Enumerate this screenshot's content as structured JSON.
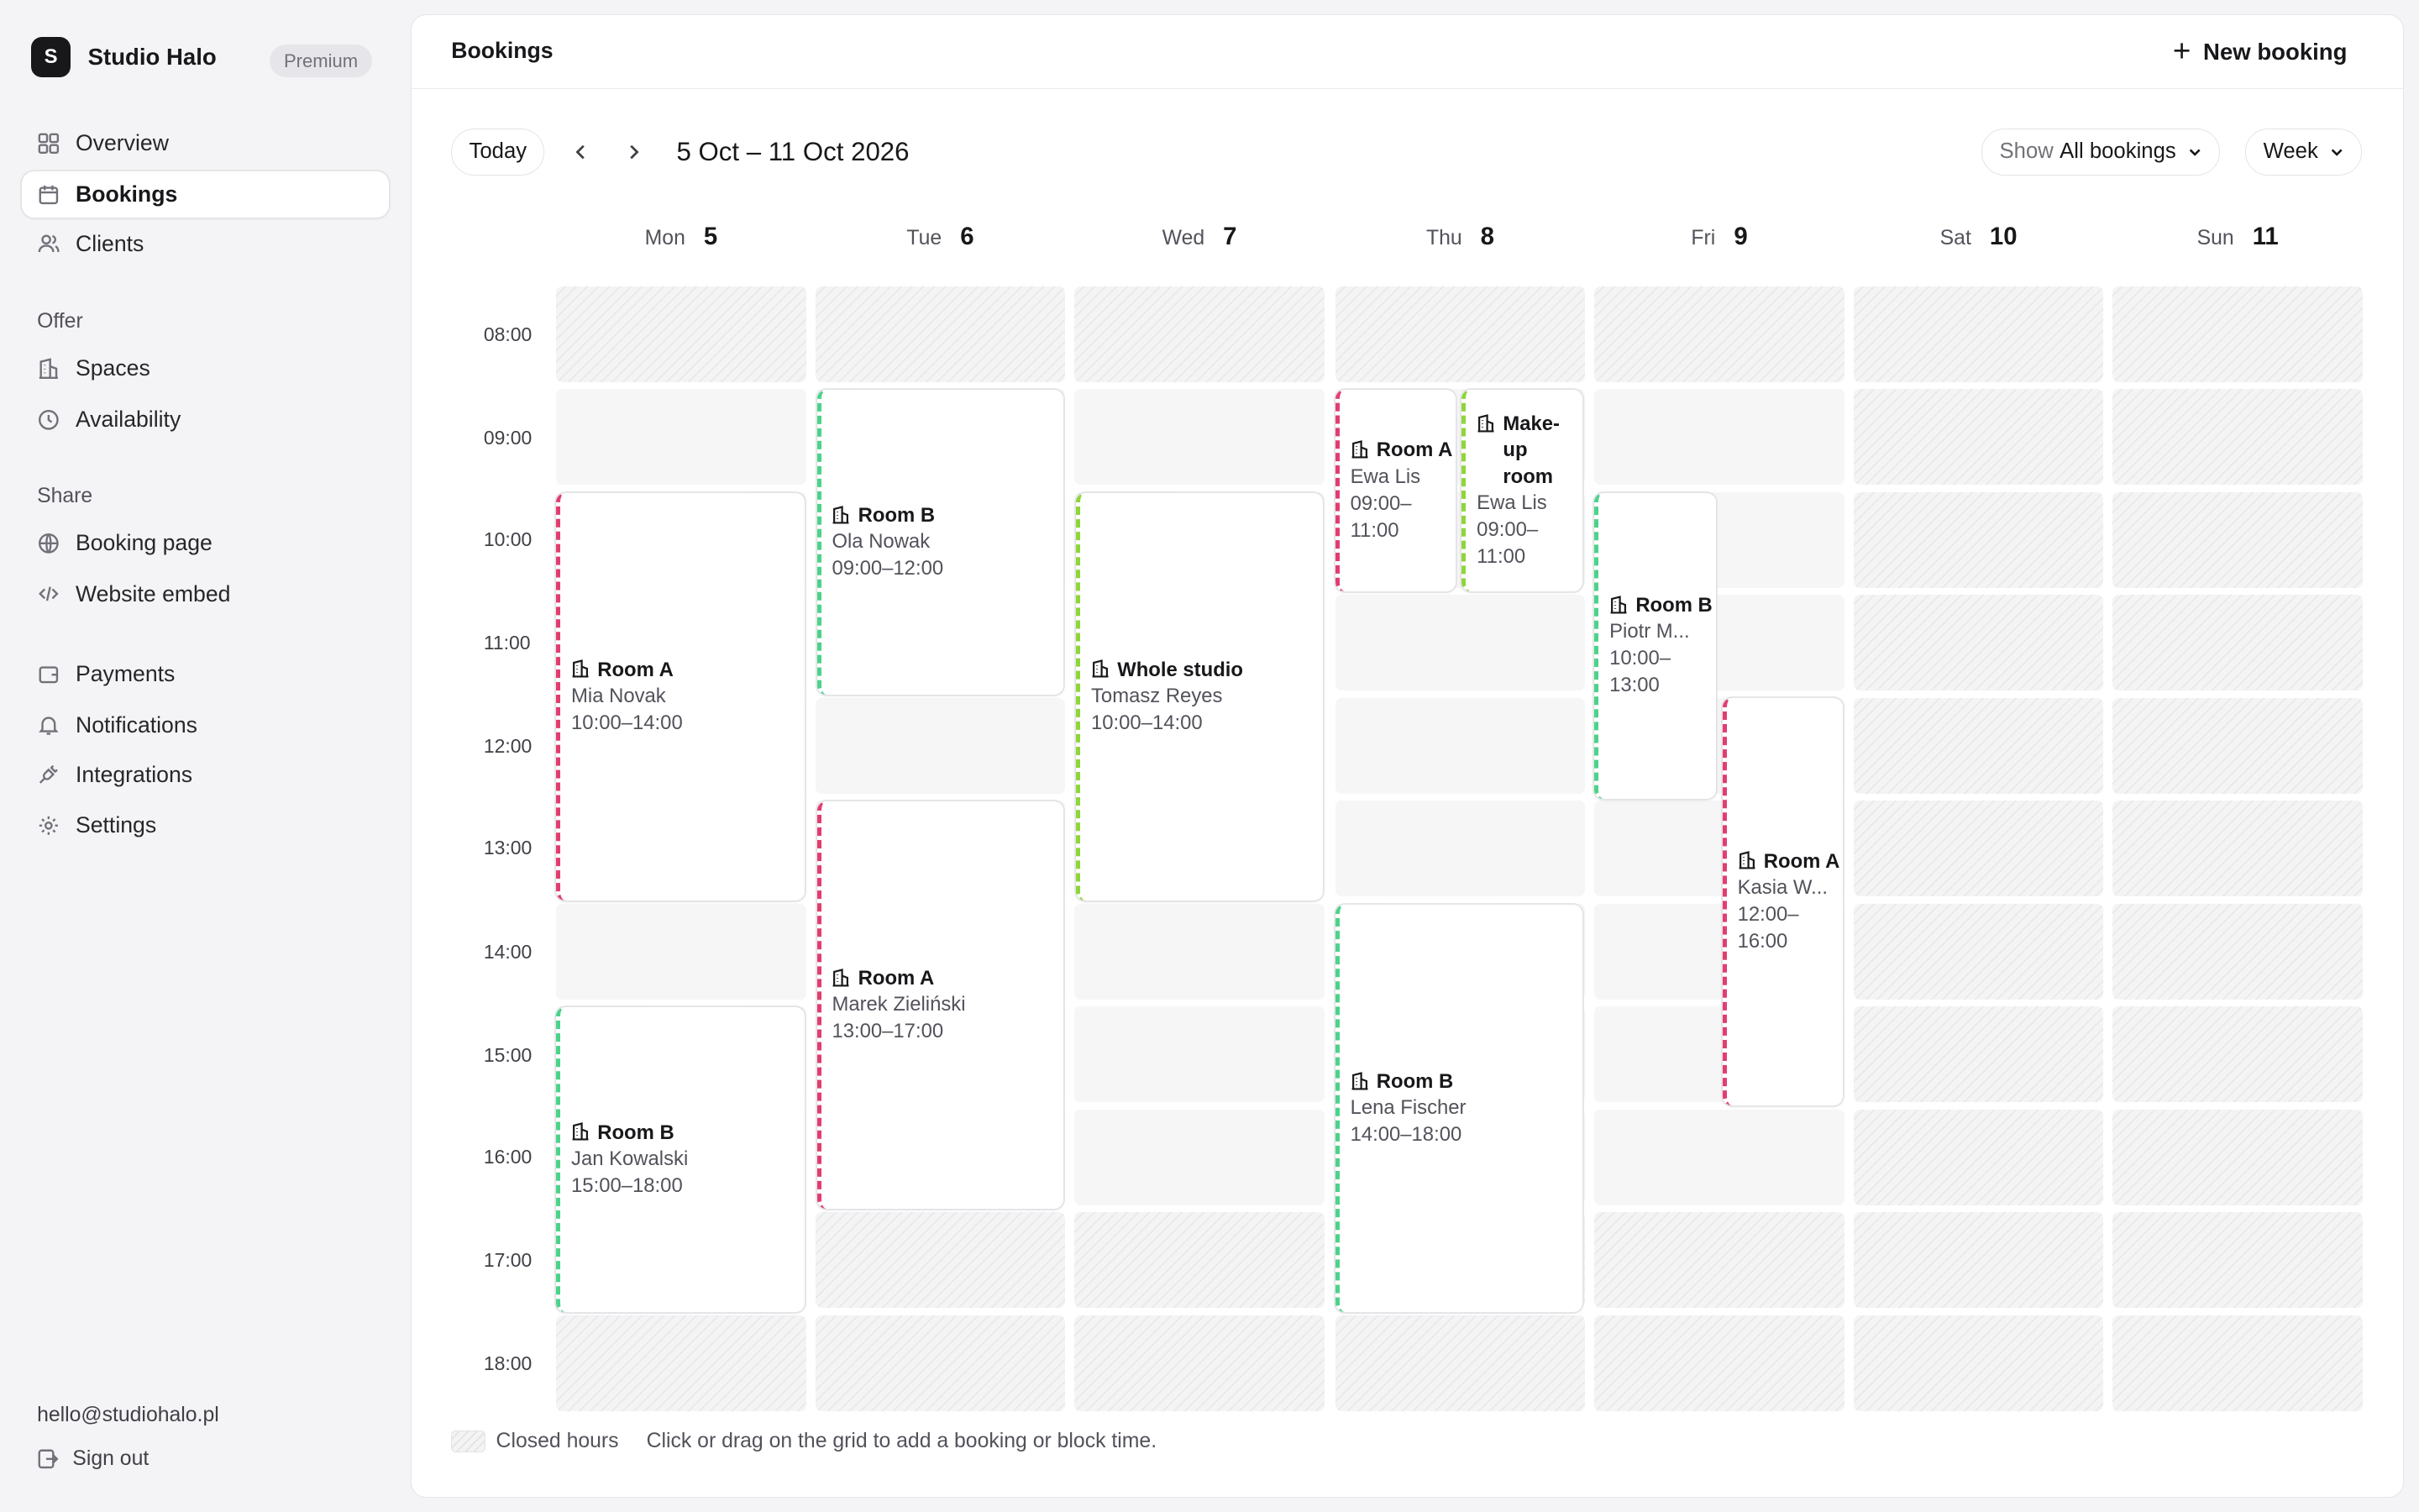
{
  "brand": {
    "logo_letter": "S",
    "name": "Studio Halo",
    "plan": "Premium"
  },
  "nav": {
    "overview": "Overview",
    "bookings": "Bookings",
    "clients": "Clients",
    "offer_label": "Offer",
    "spaces": "Spaces",
    "availability": "Availability",
    "share_label": "Share",
    "booking_page": "Booking page",
    "website_embed": "Website embed",
    "payments": "Payments",
    "notifications": "Notifications",
    "integrations": "Integrations",
    "settings": "Settings"
  },
  "account": {
    "email": "hello@studiohalo.pl",
    "sign_out": "Sign out"
  },
  "header": {
    "title": "Bookings",
    "new_booking": "New booking"
  },
  "toolbar": {
    "today": "Today",
    "range": "5 Oct – 11 Oct 2026",
    "show_label": "Show",
    "show_value": "All bookings",
    "view": "Week"
  },
  "days": [
    {
      "name": "Mon",
      "date": "5"
    },
    {
      "name": "Tue",
      "date": "6"
    },
    {
      "name": "Wed",
      "date": "7"
    },
    {
      "name": "Thu",
      "date": "8"
    },
    {
      "name": "Fri",
      "date": "9"
    },
    {
      "name": "Sat",
      "date": "10"
    },
    {
      "name": "Sun",
      "date": "11"
    }
  ],
  "hours": [
    "08:00",
    "09:00",
    "10:00",
    "11:00",
    "12:00",
    "13:00",
    "14:00",
    "15:00",
    "16:00",
    "17:00",
    "18:00"
  ],
  "bookings": {
    "mon_a": {
      "space": "Room A",
      "client": "Mia Novak",
      "time": "10:00–14:00"
    },
    "mon_b": {
      "space": "Room B",
      "client": "Jan Kowalski",
      "time": "15:00–18:00"
    },
    "tue_b": {
      "space": "Room B",
      "client": "Ola Nowak",
      "time": "09:00–12:00"
    },
    "tue_a": {
      "space": "Room A",
      "client": "Marek Zieliński",
      "time": "13:00–17:00"
    },
    "wed_studio": {
      "space": "Whole studio",
      "client": "Tomasz Reyes",
      "time": "10:00–14:00"
    },
    "thu_a": {
      "space": "Room A",
      "client": "Ewa Lis",
      "time": "09:00–11:00"
    },
    "thu_makeup": {
      "space": "Make-up room",
      "client": "Ewa Lis",
      "time": "09:00–11:00"
    },
    "thu_b": {
      "space": "Room B",
      "client": "Lena Fischer",
      "time": "14:00–18:00"
    },
    "fri_b": {
      "space": "Room B",
      "client": "Piotr M...",
      "time": "10:00–13:00"
    },
    "fri_a": {
      "space": "Room A",
      "client": "Kasia W...",
      "time": "12:00–16:00"
    }
  },
  "colors": {
    "room_a": "#e23d6f",
    "room_b": "#4cd38a",
    "whole_studio": "#8ed639"
  },
  "legend": {
    "closed": "Closed hours",
    "hint": "Click or drag on the grid to add a booking or block time."
  }
}
